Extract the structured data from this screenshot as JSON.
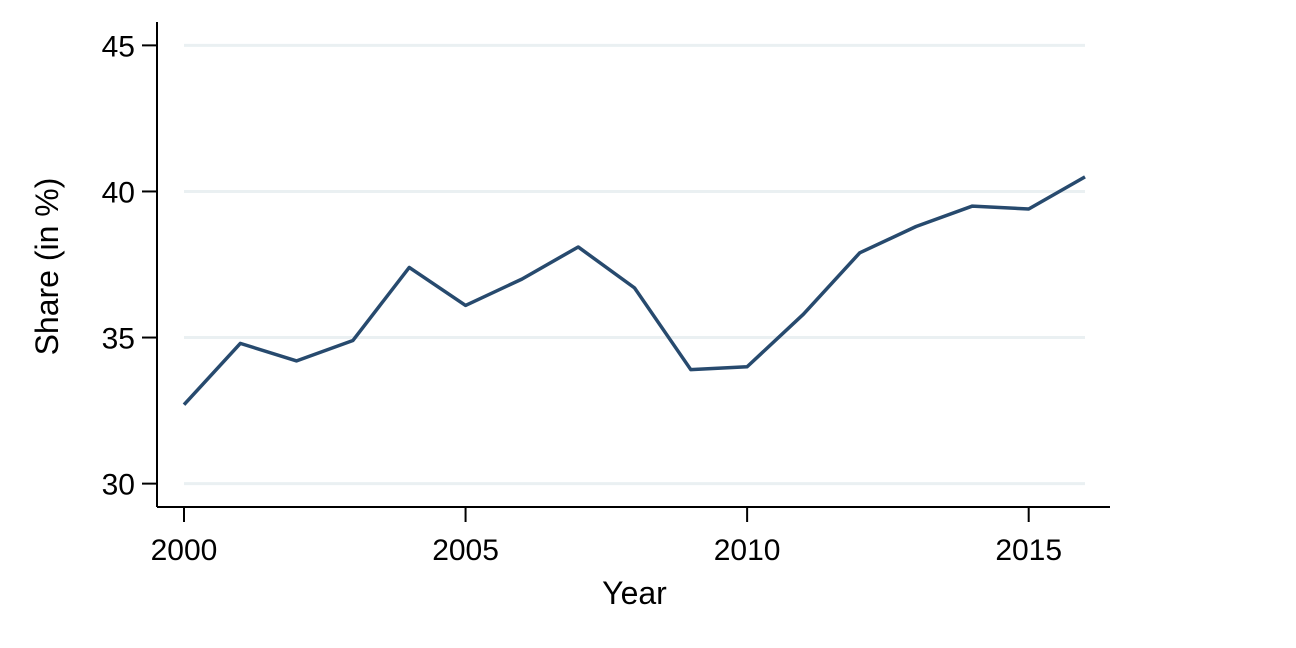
{
  "chart_data": {
    "type": "line",
    "xlabel": "Year",
    "ylabel": "Share (in %)",
    "xlim": [
      2000,
      2016
    ],
    "ylim": [
      29.2,
      45.8
    ],
    "x_ticks": [
      2000,
      2005,
      2010,
      2015
    ],
    "y_ticks": [
      30,
      35,
      40,
      45
    ],
    "grid": true,
    "line_color": "#274a6e",
    "series": [
      {
        "x": [
          2000,
          2001,
          2002,
          2003,
          2004,
          2005,
          2006,
          2007,
          2008,
          2009,
          2010,
          2011,
          2012,
          2013,
          2014,
          2015,
          2016
        ],
        "values": [
          32.7,
          34.8,
          34.2,
          34.9,
          37.4,
          36.1,
          37.0,
          38.1,
          36.7,
          33.9,
          34.0,
          35.8,
          37.9,
          38.8,
          39.5,
          39.4,
          40.5
        ]
      }
    ]
  }
}
